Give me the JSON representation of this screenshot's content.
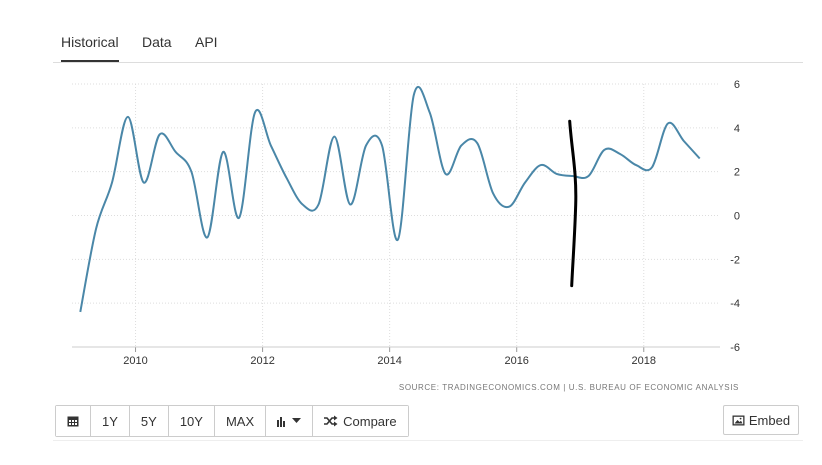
{
  "tabs": [
    "Historical",
    "Data",
    "API"
  ],
  "source": "SOURCE: TRADINGECONOMICS.COM  |  U.S. BUREAU OF ECONOMIC ANALYSIS",
  "toolbar": {
    "calendar_icon": "calendar-icon",
    "btn_1y": "1Y",
    "btn_5y": "5Y",
    "btn_10y": "10Y",
    "btn_max": "MAX",
    "chart_type_icon": "bar-chart-icon",
    "compare_icon": "shuffle-icon",
    "compare_label": "Compare",
    "embed_icon": "image-icon",
    "embed_label": "Embed"
  },
  "colors": {
    "line": "#4a87a8",
    "grid": "#dddddd",
    "annotation": "#000000"
  },
  "chart_data": {
    "type": "line",
    "title": "",
    "xlabel": "",
    "ylabel": "",
    "xlim": [
      2009.0,
      2019.2
    ],
    "ylim": [
      -6,
      6
    ],
    "y_axis_side": "right",
    "grid": true,
    "x_ticks": [
      "2010",
      "2012",
      "2014",
      "2016",
      "2018"
    ],
    "y_ticks": [
      "6",
      "4",
      "2",
      "0",
      "-2",
      "-4",
      "-6"
    ],
    "series": [
      {
        "x": [
          2009.13,
          2009.38,
          2009.63,
          2009.88,
          2010.13,
          2010.38,
          2010.63,
          2010.88,
          2011.13,
          2011.38,
          2011.63,
          2011.88,
          2012.13,
          2012.38,
          2012.63,
          2012.88,
          2013.13,
          2013.38,
          2013.63,
          2013.88,
          2014.13,
          2014.38,
          2014.63,
          2014.88,
          2015.13,
          2015.38,
          2015.63,
          2015.88,
          2016.13,
          2016.38,
          2016.63,
          2016.88,
          2017.13,
          2017.38,
          2017.63,
          2017.88,
          2018.13,
          2018.38,
          2018.63,
          2018.88
        ],
        "y": [
          -4.4,
          -0.6,
          1.5,
          4.5,
          1.5,
          3.7,
          2.9,
          2.0,
          -1.0,
          2.9,
          -0.1,
          4.7,
          3.2,
          1.7,
          0.5,
          0.5,
          3.6,
          0.5,
          3.2,
          3.2,
          -1.1,
          5.5,
          4.7,
          1.9,
          3.2,
          3.3,
          1.0,
          0.4,
          1.5,
          2.3,
          1.9,
          1.8,
          1.8,
          3.0,
          2.8,
          2.3,
          2.2,
          4.2,
          3.4,
          2.6
        ]
      }
    ],
    "annotation": "hand-drawn vertical line near 2016.85"
  }
}
